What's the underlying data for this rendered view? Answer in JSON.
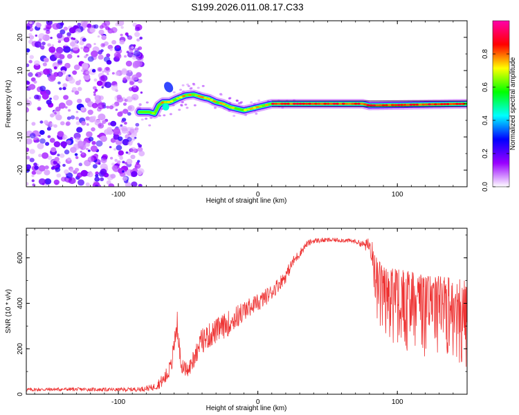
{
  "title": "S199.2026.011.08.17.C33",
  "chart_data": [
    {
      "type": "heatmap",
      "title": "S199.2026.011.08.17.C33",
      "xlabel": "Height of straight line (km)",
      "ylabel": "Frequency (Hz)",
      "xlim": [
        -166,
        150
      ],
      "ylim": [
        -25,
        25
      ],
      "x_ticks": [
        -100,
        0,
        100
      ],
      "x_tick_labels": [
        "-100",
        "0",
        "100"
      ],
      "y_ticks": [
        -20,
        -10,
        0,
        10,
        20
      ],
      "y_tick_labels": [
        "-20",
        "-10",
        "0",
        "10",
        "20"
      ],
      "noise_region_x": [
        -166,
        -83
      ],
      "ridge": {
        "x": [
          -85,
          -78,
          -74,
          -71,
          -68,
          -63,
          -58,
          -52,
          -46,
          -40,
          -35,
          -30,
          -25,
          -20,
          -15,
          -10,
          -5,
          0,
          5,
          10,
          15,
          75,
          80,
          150
        ],
        "y": [
          -2.5,
          -2.5,
          -3,
          -0.5,
          0.5,
          0.5,
          1.5,
          2.5,
          2.8,
          2.0,
          1.5,
          0.5,
          0,
          -1.0,
          -1.5,
          -2.0,
          -1.5,
          -1.0,
          -0.5,
          0,
          0,
          0,
          -0.5,
          0
        ]
      },
      "colorbar": {
        "label": "Normalized spectral amplitude",
        "range": [
          0,
          1
        ],
        "ticks": [
          0.0,
          0.2,
          0.4,
          0.6,
          0.8
        ],
        "tick_labels": [
          "0.0",
          "0.2",
          "0.4",
          "0.6",
          "0.8"
        ],
        "colors": [
          "#ffffff",
          "#9900ff",
          "#0000ff",
          "#00ffff",
          "#00ff00",
          "#ffff00",
          "#ff0000",
          "#ff00aa"
        ]
      }
    },
    {
      "type": "line",
      "xlabel": "Height of straight line (km)",
      "ylabel": "SNR (10 * v/v)",
      "xlim": [
        -166,
        150
      ],
      "ylim": [
        0,
        730
      ],
      "x_ticks": [
        -100,
        0,
        100
      ],
      "x_tick_labels": [
        "-100",
        "0",
        "100"
      ],
      "y_ticks": [
        0,
        200,
        400,
        600
      ],
      "y_tick_labels": [
        "0",
        "200",
        "400",
        "600"
      ],
      "color": "#ee3333",
      "series": [
        {
          "name": "SNR",
          "x": [
            -166,
            -140,
            -100,
            -85,
            -75,
            -68,
            -62,
            -58,
            -55,
            -50,
            -45,
            -40,
            -30,
            -20,
            -10,
            0,
            10,
            20,
            25,
            30,
            35,
            40,
            50,
            60,
            70,
            75,
            80,
            85,
            90,
            100,
            110,
            120,
            130,
            140,
            150
          ],
          "y": [
            20,
            22,
            20,
            22,
            30,
            60,
            110,
            300,
            120,
            90,
            160,
            220,
            260,
            300,
            350,
            400,
            450,
            520,
            580,
            620,
            660,
            675,
            678,
            678,
            672,
            660,
            650,
            550,
            500,
            480,
            470,
            450,
            450,
            440,
            420
          ],
          "noise_amplitude": [
            8,
            8,
            8,
            10,
            15,
            30,
            50,
            80,
            40,
            45,
            60,
            70,
            70,
            70,
            60,
            40,
            35,
            30,
            25,
            20,
            15,
            12,
            10,
            10,
            10,
            15,
            40,
            150,
            180,
            200,
            200,
            200,
            200,
            210,
            220
          ]
        }
      ]
    }
  ]
}
